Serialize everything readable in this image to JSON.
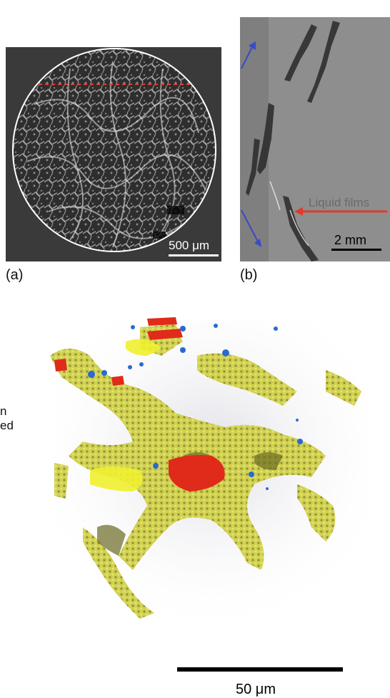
{
  "panel_a": {
    "label": "(a)",
    "scale_label": "500 μm",
    "colors": {
      "background": "#3a3a3a",
      "circle": "#ffffff",
      "dashed_line": "#e04040"
    }
  },
  "panel_b": {
    "label": "(b)",
    "annotation": "Liquid films",
    "scale_label": "2 mm",
    "colors": {
      "background": "#8a8a8a",
      "arrow_red": "#e03a2a",
      "arrow_blue": "#3a4ac8",
      "annotation_text": "#6a6a6a"
    }
  },
  "panel_c": {
    "scale_label": "50 μm",
    "colors": {
      "yellow": "#d8d840",
      "olive": "#8c8a30",
      "red": "#e02a1a",
      "blue": "#2a6ad0"
    }
  },
  "side_text": {
    "line1": "n",
    "line2": "ed"
  }
}
